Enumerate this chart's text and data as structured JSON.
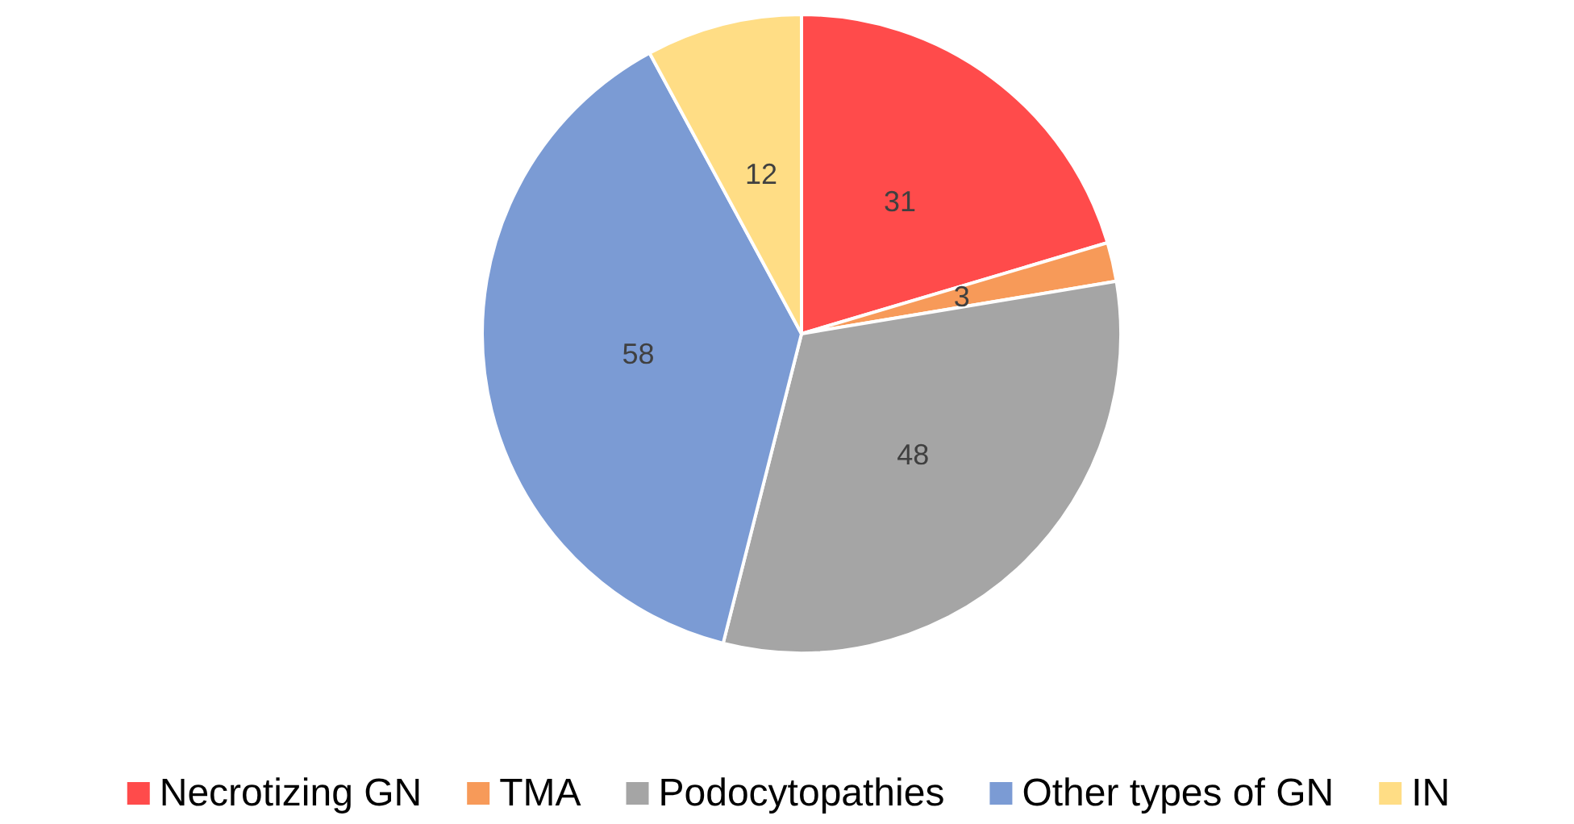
{
  "chart_data": {
    "type": "pie",
    "categories": [
      "Necrotizing GN",
      "TMA",
      "Podocytopathies",
      "Other types of GN",
      "IN"
    ],
    "values": [
      31,
      3,
      48,
      58,
      12
    ],
    "colors": [
      "#ff4b4b",
      "#f79a59",
      "#a5a5a5",
      "#7b9bd4",
      "#ffdd85"
    ],
    "data_labels": true,
    "legend": "bottom"
  }
}
